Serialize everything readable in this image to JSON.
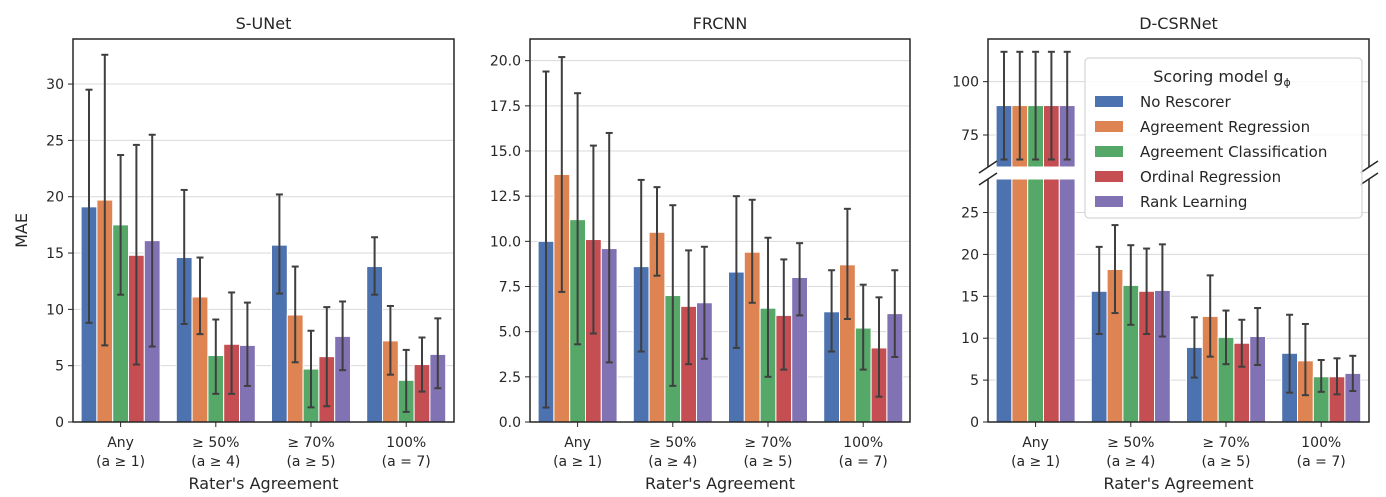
{
  "legend": {
    "title": "Scoring model g",
    "title_sub": "ϕ",
    "placement": "upper-right of D-CSRNet panel"
  },
  "colors": {
    "No Rescorer": "#4c72b0",
    "Agreement Regression": "#dd8452",
    "Agreement Classification": "#55a868",
    "Ordinal Regression": "#c44e52",
    "Rank Learning": "#8172b3",
    "grid": "#d9d9d9",
    "error_bar": "#3f3f3f"
  },
  "chart_data": [
    {
      "type": "bar",
      "title": "S-UNet",
      "xlabel": "Rater's Agreement",
      "ylabel": "MAE",
      "categories": [
        "Any",
        "≥ 50%",
        "≥ 70%",
        "100%"
      ],
      "category_sublabels": [
        "(a ≥ 1)",
        "(a ≥ 4)",
        "(a ≥ 5)",
        "(a = 7)"
      ],
      "ylim": [
        0,
        34
      ],
      "yticks": [
        0,
        5,
        10,
        15,
        20,
        25,
        30
      ],
      "grid": true,
      "series": [
        {
          "name": "No Rescorer",
          "values": [
            19.1,
            14.6,
            15.7,
            13.8
          ],
          "lower": [
            8.8,
            8.7,
            11.4,
            11.3
          ],
          "upper": [
            29.5,
            20.6,
            20.2,
            16.4
          ]
        },
        {
          "name": "Agreement Regression",
          "values": [
            19.7,
            11.1,
            9.5,
            7.2
          ],
          "lower": [
            6.8,
            7.8,
            5.3,
            4.2
          ],
          "upper": [
            32.6,
            14.6,
            13.8,
            10.3
          ]
        },
        {
          "name": "Agreement Classification",
          "values": [
            17.5,
            5.9,
            4.7,
            3.7
          ],
          "lower": [
            11.3,
            2.5,
            1.3,
            0.9
          ],
          "upper": [
            23.7,
            9.1,
            8.1,
            6.4
          ]
        },
        {
          "name": "Ordinal Regression",
          "values": [
            14.8,
            6.9,
            5.8,
            5.1
          ],
          "lower": [
            5.1,
            2.5,
            1.4,
            2.7
          ],
          "upper": [
            24.6,
            11.5,
            10.2,
            7.5
          ]
        },
        {
          "name": "Rank Learning",
          "values": [
            16.1,
            6.8,
            7.6,
            6.0
          ],
          "lower": [
            6.7,
            3.2,
            4.6,
            3.0
          ],
          "upper": [
            25.5,
            10.6,
            10.7,
            9.2
          ]
        }
      ]
    },
    {
      "type": "bar",
      "title": "FRCNN",
      "xlabel": "Rater's Agreement",
      "ylabel": "",
      "categories": [
        "Any",
        "≥ 50%",
        "≥ 70%",
        "100%"
      ],
      "category_sublabels": [
        "(a ≥ 1)",
        "(a ≥ 4)",
        "(a ≥ 5)",
        "(a = 7)"
      ],
      "ylim": [
        0,
        21.2
      ],
      "yticks": [
        0.0,
        2.5,
        5.0,
        7.5,
        10.0,
        12.5,
        15.0,
        17.5,
        20.0
      ],
      "ytick_labels": [
        "0.0",
        "2.5",
        "5.0",
        "7.5",
        "10.0",
        "12.5",
        "15.0",
        "17.5",
        "20.0"
      ],
      "grid": true,
      "series": [
        {
          "name": "No Rescorer",
          "values": [
            10.0,
            8.6,
            8.3,
            6.1
          ],
          "lower": [
            0.8,
            3.9,
            4.1,
            3.9
          ],
          "upper": [
            19.4,
            13.4,
            12.5,
            8.4
          ]
        },
        {
          "name": "Agreement Regression",
          "values": [
            13.7,
            10.5,
            9.4,
            8.7
          ],
          "lower": [
            7.2,
            8.1,
            6.6,
            5.7
          ],
          "upper": [
            20.2,
            13.0,
            12.3,
            11.8
          ]
        },
        {
          "name": "Agreement Classification",
          "values": [
            11.2,
            7.0,
            6.3,
            5.2
          ],
          "lower": [
            4.3,
            2.0,
            2.5,
            2.9
          ],
          "upper": [
            18.2,
            12.0,
            10.2,
            7.6
          ]
        },
        {
          "name": "Ordinal Regression",
          "values": [
            10.1,
            6.4,
            5.9,
            4.1
          ],
          "lower": [
            4.9,
            3.2,
            2.9,
            1.4
          ],
          "upper": [
            15.3,
            9.5,
            9.0,
            6.9
          ]
        },
        {
          "name": "Rank Learning",
          "values": [
            9.6,
            6.6,
            8.0,
            6.0
          ],
          "lower": [
            3.3,
            3.5,
            5.9,
            3.6
          ],
          "upper": [
            16.0,
            9.7,
            9.9,
            8.4
          ]
        }
      ]
    },
    {
      "type": "bar",
      "title": "D-CSRNet",
      "xlabel": "Rater's Agreement",
      "ylabel": "",
      "categories": [
        "Any",
        "≥ 50%",
        "≥ 70%",
        "100%"
      ],
      "category_sublabels": [
        "(a ≥ 1)",
        "(a ≥ 4)",
        "(a ≥ 5)",
        "(a = 7)"
      ],
      "broken_axis": true,
      "ylim_lower": [
        0,
        29
      ],
      "ylim_upper": [
        60,
        120
      ],
      "yticks_lower": [
        0,
        5,
        10,
        15,
        20,
        25
      ],
      "yticks_upper": [
        75,
        100
      ],
      "grid": true,
      "series": [
        {
          "name": "No Rescorer",
          "values": [
            88.8,
            15.6,
            8.9,
            8.2
          ],
          "lower": [
            63.5,
            10.5,
            5.3,
            3.5
          ],
          "upper": [
            114.0,
            20.9,
            12.5,
            12.8
          ]
        },
        {
          "name": "Agreement Regression",
          "values": [
            88.8,
            18.2,
            12.6,
            7.3
          ],
          "lower": [
            63.5,
            13.0,
            7.8,
            3.2
          ],
          "upper": [
            114.0,
            23.5,
            17.5,
            11.7
          ]
        },
        {
          "name": "Agreement Classification",
          "values": [
            88.8,
            16.3,
            10.1,
            5.4
          ],
          "lower": [
            63.5,
            11.6,
            6.9,
            3.6
          ],
          "upper": [
            114.0,
            21.1,
            13.3,
            7.4
          ]
        },
        {
          "name": "Ordinal Regression",
          "values": [
            88.8,
            15.6,
            9.4,
            5.4
          ],
          "lower": [
            63.5,
            10.5,
            6.6,
            3.3
          ],
          "upper": [
            114.0,
            20.7,
            12.2,
            7.6
          ]
        },
        {
          "name": "Rank Learning",
          "values": [
            88.8,
            15.7,
            10.2,
            5.8
          ],
          "lower": [
            63.5,
            10.2,
            6.8,
            3.7
          ],
          "upper": [
            114.0,
            21.2,
            13.6,
            7.9
          ]
        }
      ]
    }
  ]
}
